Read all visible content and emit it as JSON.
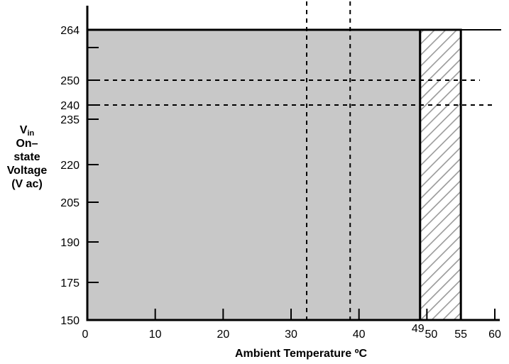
{
  "chart_data": {
    "type": "area",
    "title": "",
    "xlabel": "Ambient Temperature ºC",
    "ylabel": {
      "symbol": "V",
      "subscript": "in",
      "line2": "On–state",
      "line3": "Voltage",
      "line4": "(V ac)"
    },
    "x_ticks": [
      {
        "value": 0,
        "label": "0"
      },
      {
        "value": 10,
        "label": "10"
      },
      {
        "value": 20,
        "label": "20"
      },
      {
        "value": 30,
        "label": "30"
      },
      {
        "value": 40,
        "label": "40"
      },
      {
        "value": 49,
        "label": "49"
      },
      {
        "value": 50,
        "label": "50"
      },
      {
        "value": 55,
        "label": "55"
      },
      {
        "value": 60,
        "label": "60"
      }
    ],
    "y_ticks": [
      {
        "value": 150,
        "label": "150"
      },
      {
        "value": 175,
        "label": "175"
      },
      {
        "value": 190,
        "label": "190"
      },
      {
        "value": 205,
        "label": "205"
      },
      {
        "value": 220,
        "label": "220"
      },
      {
        "value": 235,
        "label": "235"
      },
      {
        "value": 240,
        "label": "240"
      },
      {
        "value": 250,
        "label": "250"
      },
      {
        "value": 264,
        "label": "264"
      }
    ],
    "regions": [
      {
        "kind": "solid",
        "x": [
          0,
          49
        ],
        "y": [
          150,
          264
        ],
        "color": "#c8c8c8"
      },
      {
        "kind": "hatched",
        "x": [
          49,
          55
        ],
        "y": [
          150,
          264
        ],
        "color": "#9a9a9a"
      }
    ],
    "reference_lines": {
      "horizontal": [
        250,
        240
      ],
      "vertical": [
        32.3,
        38.7
      ]
    },
    "xlim": [
      0,
      61
    ],
    "ylim": [
      150,
      264
    ],
    "grid": false,
    "colors": {
      "fill": "#c8c8c8",
      "hatch": "#9a9a9a",
      "axis": "#000000"
    }
  }
}
